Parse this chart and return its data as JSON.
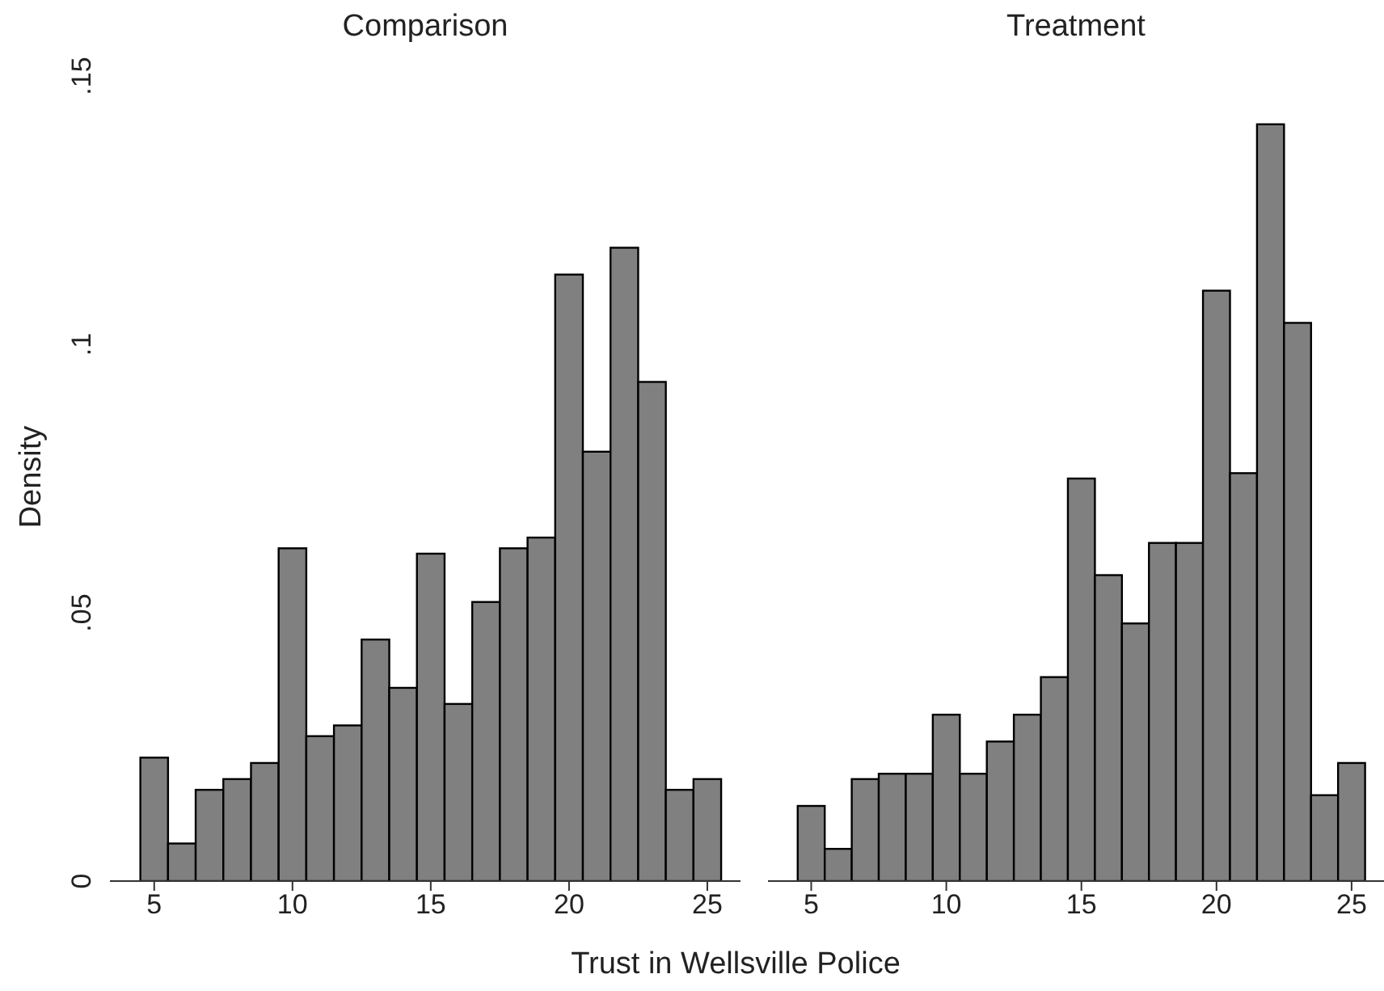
{
  "chart_data": [
    {
      "type": "histogram",
      "title": "Comparison",
      "xlabel": "Trust in Wellsville Police",
      "ylabel": "Density",
      "color": "#808080",
      "bins": [
        4.5,
        5.5,
        6.5,
        7.5,
        8.5,
        9.5,
        10.5,
        11.5,
        12.5,
        13.5,
        14.5,
        15.5,
        16.5,
        17.5,
        18.5,
        19.5,
        20.5,
        21.5,
        22.5,
        23.5,
        24.5,
        25.5
      ],
      "values": [
        0.023,
        0.007,
        0.017,
        0.019,
        0.022,
        0.062,
        0.027,
        0.029,
        0.045,
        0.036,
        0.061,
        0.033,
        0.052,
        0.062,
        0.064,
        0.113,
        0.08,
        0.118,
        0.093,
        0.017,
        0.019
      ],
      "xlim": [
        3.4,
        26.2
      ],
      "xticks": [
        5,
        10,
        15,
        20,
        25
      ],
      "ylim": [
        0,
        0.15
      ],
      "yticks": [
        {
          "value": 0,
          "label": "0"
        },
        {
          "value": 0.05,
          "label": ".05"
        },
        {
          "value": 0.1,
          "label": ".1"
        },
        {
          "value": 0.15,
          "label": ".15"
        }
      ],
      "grid": false
    },
    {
      "type": "histogram",
      "title": "Treatment",
      "color": "#808080",
      "bins": [
        4.5,
        5.5,
        6.5,
        7.5,
        8.5,
        9.5,
        10.5,
        11.5,
        12.5,
        13.5,
        14.5,
        15.5,
        16.5,
        17.5,
        18.5,
        19.5,
        20.5,
        21.5,
        22.5,
        23.5,
        24.5,
        25.5
      ],
      "values": [
        0.014,
        0.006,
        0.019,
        0.02,
        0.02,
        0.031,
        0.02,
        0.026,
        0.031,
        0.038,
        0.075,
        0.057,
        0.048,
        0.063,
        0.063,
        0.11,
        0.076,
        0.141,
        0.104,
        0.016,
        0.022
      ],
      "xlim": [
        3.4,
        26.2
      ],
      "xticks": [
        5,
        10,
        15,
        20,
        25
      ],
      "ylim": [
        0,
        0.15
      ],
      "tick_labels": "x",
      "grid": false
    }
  ]
}
